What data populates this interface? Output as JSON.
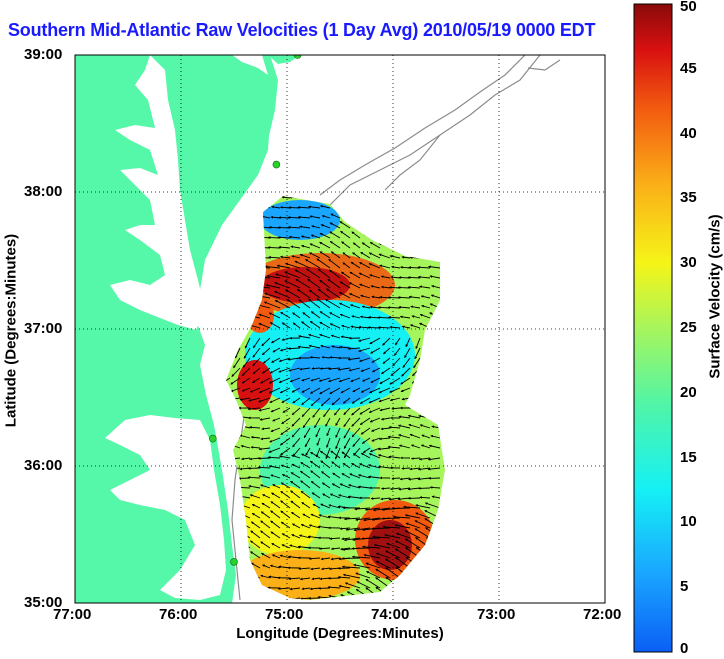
{
  "title": "Southern Mid-Atlantic Raw Velocities (1 Day Avg) 2010/05/19 0000 EDT",
  "axes": {
    "xlabel": "Longitude (Degrees:Minutes)",
    "ylabel": "Latitude (Degrees:Minutes)",
    "x_ticks": [
      "77:00",
      "76:00",
      "75:00",
      "74:00",
      "73:00",
      "72:00"
    ],
    "y_ticks": [
      "39:00",
      "38:00",
      "37:00",
      "36:00",
      "35:00"
    ]
  },
  "colorbar": {
    "label": "Surface Velocity (cm/s)",
    "ticks": [
      "50",
      "45",
      "40",
      "35",
      "30",
      "25",
      "20",
      "15",
      "10",
      "5",
      "0"
    ],
    "range": [
      0,
      50
    ],
    "colormap": "jet"
  },
  "colors": {
    "land": "#55f7a8",
    "water": "#ffffff",
    "title": "#1a1aff",
    "bathymetry": "#8c8c8c",
    "station": "#2ad12a",
    "arrow": "#000000"
  },
  "map": {
    "lon_range": [
      -77,
      -72
    ],
    "lat_range": [
      35,
      39
    ],
    "grid": "dotted",
    "stations": [
      {
        "lon": -74.9,
        "lat": 39.0
      },
      {
        "lon": -75.1,
        "lat": 38.2
      },
      {
        "lon": -75.7,
        "lat": 36.2
      },
      {
        "lon": -75.5,
        "lat": 35.3
      }
    ]
  }
}
